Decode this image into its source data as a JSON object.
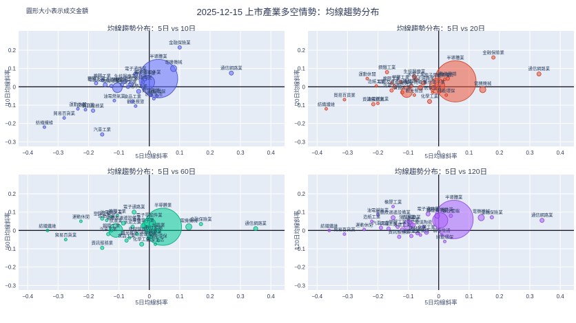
{
  "figure": {
    "title": "2025-12-15 上市產業多空情勢：均線趨勢分布",
    "note": "圓形大小表示成交金額"
  },
  "chart_data": {
    "type": "scatter",
    "bubble_size_meaning": "成交金額",
    "x_label": "5日均線斜率",
    "x_ticks": [
      -0.4,
      -0.3,
      -0.2,
      -0.1,
      0,
      0.1,
      0.2,
      0.3,
      0.4
    ],
    "y_ticks": [
      0.2,
      0.1,
      0,
      -0.1,
      -0.2,
      -0.3
    ],
    "xlim": [
      -0.43,
      0.445
    ],
    "ylim": [
      -0.325,
      0.305
    ],
    "grid": true,
    "colors": {
      "plot_bg": "#e5ecf6",
      "grid": "#ffffff",
      "zero_line": "#1a1a28",
      "tick_text": "#2e3a59",
      "label_text": "#2a3f5f"
    },
    "charts": [
      {
        "id": "tl",
        "title": "均線趨勢分布：5日 vs 10日",
        "y_label": "10日均線斜率",
        "color": "#636efa",
        "stroke": "#4650c8",
        "points": [
          {
            "n": "金融保險業",
            "x": 0.1,
            "y": 0.215,
            "r": 2.5
          },
          {
            "n": "半導體業",
            "x": 0.03,
            "y": 0.045,
            "r": 28
          },
          {
            "n": "電機機械",
            "x": 0.08,
            "y": 0.1,
            "r": 4.5
          },
          {
            "n": "通信網路業",
            "x": 0.27,
            "y": 0.075,
            "r": 3
          },
          {
            "n": "電子通路業",
            "x": -0.045,
            "y": 0.07,
            "r": 3
          },
          {
            "n": "其他電子業",
            "x": -0.015,
            "y": 0.045,
            "r": 3.5
          },
          {
            "n": "電子零組件業",
            "x": -0.005,
            "y": 0.025,
            "r": 10
          },
          {
            "n": "航運業",
            "x": -0.105,
            "y": -0.005,
            "r": 7
          },
          {
            "n": "電腦及週邊設備業",
            "x": -0.145,
            "y": 0.01,
            "r": 3
          },
          {
            "n": "鋼鐵工業",
            "x": -0.175,
            "y": 0.02,
            "r": 2.5
          },
          {
            "n": "橡膠工業",
            "x": -0.155,
            "y": 0.035,
            "r": 2
          },
          {
            "n": "塑膠工業",
            "x": -0.125,
            "y": 0.005,
            "r": 2.5
          },
          {
            "n": "水泥工業",
            "x": -0.07,
            "y": 0.0,
            "r": 2.5
          },
          {
            "n": "玻璃陶瓷",
            "x": -0.02,
            "y": 0.025,
            "r": 2
          },
          {
            "n": "生技醫療業",
            "x": -0.08,
            "y": 0.03,
            "r": 3
          },
          {
            "n": "光電業",
            "x": -0.06,
            "y": 0.015,
            "r": 3.5
          },
          {
            "n": "建材營造",
            "x": -0.09,
            "y": 0.012,
            "r": 2.5
          },
          {
            "n": "化學工業",
            "x": -0.035,
            "y": -0.025,
            "r": 3
          },
          {
            "n": "數位雲端",
            "x": 0.005,
            "y": -0.045,
            "r": 2.5
          },
          {
            "n": "居家生活",
            "x": 0.015,
            "y": -0.065,
            "r": 2
          },
          {
            "n": "綠能環保",
            "x": 0.025,
            "y": -0.05,
            "r": 2
          },
          {
            "n": "油電燃氣業",
            "x": -0.115,
            "y": -0.075,
            "r": 2
          },
          {
            "n": "食品工業",
            "x": -0.055,
            "y": -0.08,
            "r": 2.5
          },
          {
            "n": "觀光餐旅",
            "x": -0.045,
            "y": -0.105,
            "r": 2
          },
          {
            "n": "造紙工業",
            "x": -0.21,
            "y": -0.125,
            "r": 2
          },
          {
            "n": "資訊服務業",
            "x": -0.185,
            "y": -0.13,
            "r": 2.5
          },
          {
            "n": "運動休閒",
            "x": -0.235,
            "y": -0.12,
            "r": 2
          },
          {
            "n": "貿易百貨業",
            "x": -0.28,
            "y": -0.17,
            "r": 2
          },
          {
            "n": "紡織纖維",
            "x": -0.345,
            "y": -0.22,
            "r": 2
          },
          {
            "n": "汽車工業",
            "x": -0.155,
            "y": -0.26,
            "r": 2.5
          }
        ]
      },
      {
        "id": "tr",
        "title": "均線趨勢分布：5日 vs 20日",
        "y_label": "20日均線斜率",
        "color": "#ef553b",
        "stroke": "#cc3d27",
        "points": [
          {
            "n": "金融保險業",
            "x": 0.18,
            "y": 0.16,
            "r": 2.5
          },
          {
            "n": "半導體業",
            "x": 0.055,
            "y": 0.03,
            "r": 30
          },
          {
            "n": "電機機械",
            "x": 0.145,
            "y": -0.015,
            "r": 4.5
          },
          {
            "n": "通信網路業",
            "x": 0.33,
            "y": 0.07,
            "r": 3
          },
          {
            "n": "運動休閒",
            "x": -0.235,
            "y": 0.045,
            "r": 2
          },
          {
            "n": "鋼鐵工業",
            "x": -0.17,
            "y": 0.08,
            "r": 2.5
          },
          {
            "n": "塑膠工業",
            "x": -0.125,
            "y": 0.025,
            "r": 2.5
          },
          {
            "n": "造紙工業",
            "x": -0.205,
            "y": 0.005,
            "r": 2
          },
          {
            "n": "橡膠工業",
            "x": -0.155,
            "y": 0.02,
            "r": 2
          },
          {
            "n": "水泥工業",
            "x": -0.075,
            "y": 0.04,
            "r": 2.5
          },
          {
            "n": "生技醫療業",
            "x": -0.08,
            "y": 0.055,
            "r": 3
          },
          {
            "n": "電子通路業",
            "x": -0.05,
            "y": 0.02,
            "r": 3
          },
          {
            "n": "電腦及週邊設備業",
            "x": -0.145,
            "y": 0.0,
            "r": 3
          },
          {
            "n": "建材營造",
            "x": -0.09,
            "y": 0.005,
            "r": 2.5
          },
          {
            "n": "光電業",
            "x": -0.06,
            "y": -0.005,
            "r": 3.5
          },
          {
            "n": "玻璃陶瓷",
            "x": 0.02,
            "y": 0.04,
            "r": 2
          },
          {
            "n": "數位雲端",
            "x": 0.03,
            "y": 0.045,
            "r": 2.5
          },
          {
            "n": "電子零組件業",
            "x": -0.005,
            "y": 0.005,
            "r": 11
          },
          {
            "n": "航運業",
            "x": -0.105,
            "y": -0.028,
            "r": 8
          },
          {
            "n": "其他電子業",
            "x": -0.015,
            "y": -0.005,
            "r": 3.5
          },
          {
            "n": "觀光餐旅",
            "x": -0.08,
            "y": -0.045,
            "r": 2
          },
          {
            "n": "化學工業",
            "x": -0.03,
            "y": -0.08,
            "r": 3
          },
          {
            "n": "居家生活",
            "x": -0.02,
            "y": -0.03,
            "r": 2
          },
          {
            "n": "食品工業",
            "x": -0.12,
            "y": -0.03,
            "r": 2.5
          },
          {
            "n": "汽車工業",
            "x": -0.155,
            "y": -0.02,
            "r": 2.5
          },
          {
            "n": "油電燃氣業",
            "x": -0.2,
            "y": -0.09,
            "r": 2
          },
          {
            "n": "資訊服務業",
            "x": -0.215,
            "y": -0.095,
            "r": 2.5
          },
          {
            "n": "貿易百貨業",
            "x": -0.31,
            "y": -0.07,
            "r": 2
          },
          {
            "n": "紡織纖維",
            "x": -0.37,
            "y": -0.12,
            "r": 2
          },
          {
            "n": "綠能環保",
            "x": 0.025,
            "y": -0.045,
            "r": 2
          }
        ]
      },
      {
        "id": "bl",
        "title": "均線趨勢分布：5日 vs 60日",
        "y_label": "60日均線斜率",
        "color": "#00cc96",
        "stroke": "#00a87a",
        "points": [
          {
            "n": "電子通路業",
            "x": -0.05,
            "y": 0.1,
            "r": 3
          },
          {
            "n": "半導體業",
            "x": 0.045,
            "y": 0.02,
            "r": 27
          },
          {
            "n": "金融保險業",
            "x": 0.17,
            "y": 0.035,
            "r": 2.5
          },
          {
            "n": "電機機械",
            "x": 0.13,
            "y": 0.02,
            "r": 4.5
          },
          {
            "n": "通信網路業",
            "x": 0.35,
            "y": 0.01,
            "r": 3
          },
          {
            "n": "油電燃氣業",
            "x": -0.125,
            "y": 0.075,
            "r": 2
          },
          {
            "n": "橡膠工業",
            "x": -0.105,
            "y": 0.08,
            "r": 2
          },
          {
            "n": "塑膠工業",
            "x": -0.155,
            "y": 0.065,
            "r": 2.5
          },
          {
            "n": "造紙工業",
            "x": -0.14,
            "y": 0.055,
            "r": 2
          },
          {
            "n": "運動休閒",
            "x": -0.225,
            "y": 0.05,
            "r": 2
          },
          {
            "n": "電腦及週邊設備業",
            "x": -0.085,
            "y": 0.04,
            "r": 3
          },
          {
            "n": "水泥工業",
            "x": -0.055,
            "y": 0.02,
            "r": 2.5
          },
          {
            "n": "紡織纖維",
            "x": -0.335,
            "y": 0.0,
            "r": 2
          },
          {
            "n": "鋼鐵工業",
            "x": -0.125,
            "y": 0.0,
            "r": 2.5
          },
          {
            "n": "航運業",
            "x": -0.11,
            "y": 0.0,
            "r": 10
          },
          {
            "n": "汽車工業",
            "x": -0.135,
            "y": -0.02,
            "r": 2.5
          },
          {
            "n": "電子零組件業",
            "x": 0.0,
            "y": 0.03,
            "r": 10
          },
          {
            "n": "其他電子業",
            "x": -0.02,
            "y": 0.025,
            "r": 3.5
          },
          {
            "n": "玻璃陶瓷",
            "x": -0.005,
            "y": -0.045,
            "r": 2
          },
          {
            "n": "生技醫療業",
            "x": 0.005,
            "y": -0.035,
            "r": 3
          },
          {
            "n": "光電業",
            "x": 0.03,
            "y": 0.0,
            "r": 3.5
          },
          {
            "n": "數位雲端",
            "x": 0.015,
            "y": -0.01,
            "r": 2.5
          },
          {
            "n": "建材營造",
            "x": -0.04,
            "y": -0.02,
            "r": 2.5
          },
          {
            "n": "觀光餐旅",
            "x": -0.065,
            "y": -0.04,
            "r": 2
          },
          {
            "n": "食品工業",
            "x": -0.075,
            "y": -0.055,
            "r": 2.5
          },
          {
            "n": "化學工業",
            "x": -0.025,
            "y": -0.075,
            "r": 3
          },
          {
            "n": "居家生活",
            "x": 0.02,
            "y": -0.075,
            "r": 2
          },
          {
            "n": "綠能環保",
            "x": 0.03,
            "y": -0.055,
            "r": 2
          },
          {
            "n": "貿易百貨業",
            "x": -0.275,
            "y": -0.05,
            "r": 2
          },
          {
            "n": "資訊服務業",
            "x": -0.155,
            "y": -0.095,
            "r": 2.5
          }
        ]
      },
      {
        "id": "br",
        "title": "均線趨勢分布：5日 vs 120日",
        "y_label": "120日均線斜率",
        "color": "#ab63fa",
        "stroke": "#8f45e0",
        "points": [
          {
            "n": "半導體業",
            "x": 0.05,
            "y": 0.06,
            "r": 28
          },
          {
            "n": "橡膠工業",
            "x": -0.15,
            "y": 0.13,
            "r": 2
          },
          {
            "n": "油電燃氣業",
            "x": -0.2,
            "y": 0.085,
            "r": 2
          },
          {
            "n": "電腦及週邊設備業",
            "x": -0.15,
            "y": 0.07,
            "r": 3
          },
          {
            "n": "造紙工業",
            "x": -0.22,
            "y": 0.05,
            "r": 2
          },
          {
            "n": "生技醫療業",
            "x": -0.095,
            "y": 0.045,
            "r": 3
          },
          {
            "n": "航運業",
            "x": -0.1,
            "y": 0.03,
            "r": 7
          },
          {
            "n": "光電業",
            "x": -0.085,
            "y": 0.028,
            "r": 3.5
          },
          {
            "n": "電子通路業",
            "x": -0.035,
            "y": 0.09,
            "r": 3
          },
          {
            "n": "其他電子業",
            "x": -0.005,
            "y": 0.08,
            "r": 3.5
          },
          {
            "n": "數位雲端",
            "x": 0.04,
            "y": 0.08,
            "r": 2.5
          },
          {
            "n": "電子零組件業",
            "x": 0.005,
            "y": 0.055,
            "r": 11
          },
          {
            "n": "電機機械",
            "x": 0.14,
            "y": 0.07,
            "r": 4.5
          },
          {
            "n": "金融保險業",
            "x": 0.175,
            "y": 0.072,
            "r": 2.5
          },
          {
            "n": "通信網路業",
            "x": 0.34,
            "y": 0.055,
            "r": 3
          },
          {
            "n": "紡織纖維",
            "x": -0.36,
            "y": 0.0,
            "r": 2
          },
          {
            "n": "貿易百貨業",
            "x": -0.31,
            "y": -0.02,
            "r": 2
          },
          {
            "n": "運動休閒",
            "x": -0.245,
            "y": 0.005,
            "r": 2
          },
          {
            "n": "汽車工業",
            "x": -0.19,
            "y": 0.015,
            "r": 2.5
          },
          {
            "n": "鋼鐵工業",
            "x": -0.165,
            "y": 0.01,
            "r": 2.5
          },
          {
            "n": "塑膠工業",
            "x": -0.135,
            "y": 0.02,
            "r": 2.5
          },
          {
            "n": "水泥工業",
            "x": -0.12,
            "y": 0.005,
            "r": 2.5
          },
          {
            "n": "玻璃陶瓷",
            "x": -0.05,
            "y": 0.02,
            "r": 2
          },
          {
            "n": "建材營造",
            "x": -0.07,
            "y": -0.015,
            "r": 2.5
          },
          {
            "n": "化學工業",
            "x": -0.04,
            "y": -0.01,
            "r": 3
          },
          {
            "n": "觀光餐旅",
            "x": -0.06,
            "y": -0.025,
            "r": 2
          },
          {
            "n": "食品工業",
            "x": -0.09,
            "y": -0.03,
            "r": 2.5
          },
          {
            "n": "居家生活",
            "x": 0.01,
            "y": -0.025,
            "r": 2
          },
          {
            "n": "綠能環保",
            "x": 0.02,
            "y": -0.06,
            "r": 2
          },
          {
            "n": "資訊服務業",
            "x": -0.13,
            "y": -0.035,
            "r": 2.5
          }
        ]
      }
    ]
  }
}
